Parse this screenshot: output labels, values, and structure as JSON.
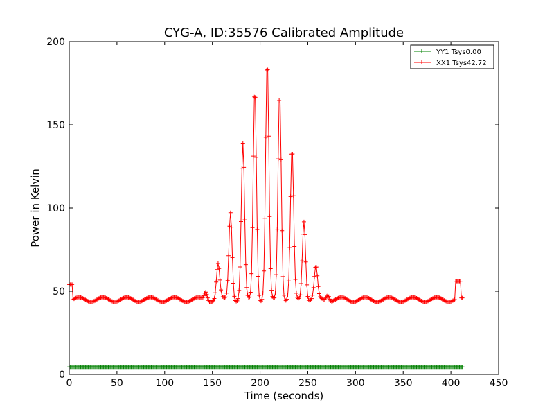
{
  "colors": {
    "yy1": "#008000",
    "xx1": "#ff0000",
    "axes": "#000000",
    "background": "#ffffff"
  },
  "chart_data": {
    "type": "line",
    "title": "CYG-A, ID:35576 Calibrated Amplitude",
    "xlabel": "Time (seconds)",
    "ylabel": "Power in Kelvin",
    "xlim": [
      0,
      450
    ],
    "ylim": [
      0,
      200
    ],
    "xticks": [
      0,
      50,
      100,
      150,
      200,
      250,
      300,
      350,
      400,
      450
    ],
    "yticks": [
      0,
      50,
      100,
      150,
      200
    ],
    "grid": false,
    "legend_position": "top-right",
    "series": [
      {
        "name": "YY1 Tsys0.00",
        "color": "#008000",
        "marker": "+",
        "x_start": 0,
        "x_end": 412,
        "x_step": 1,
        "constant_value": 4.5
      },
      {
        "name": "XX1 Tsys42.72",
        "color": "#ff0000",
        "marker": "+",
        "x_start": 0,
        "x_end": 412,
        "x_step": 1,
        "baseline": 45,
        "ripple_amplitude": 1.4,
        "ripple_period": 25,
        "start_level": 54,
        "start_end_time": 3,
        "end_level": 56,
        "end_spike_range": [
          405,
          410
        ],
        "end_drop_value": 46,
        "spikes": [
          {
            "center": 143,
            "peak": 50,
            "width": 1.5
          },
          {
            "center": 156,
            "peak": 66,
            "width": 1.7
          },
          {
            "center": 169,
            "peak": 98,
            "width": 1.7
          },
          {
            "center": 182,
            "peak": 138,
            "width": 1.7
          },
          {
            "center": 194.5,
            "peak": 173,
            "width": 1.7
          },
          {
            "center": 207.5,
            "peak": 188,
            "width": 1.7
          },
          {
            "center": 220.5,
            "peak": 171,
            "width": 1.7
          },
          {
            "center": 233.5,
            "peak": 135,
            "width": 1.7
          },
          {
            "center": 246,
            "peak": 93,
            "width": 1.7
          },
          {
            "center": 258.5,
            "peak": 64,
            "width": 1.7
          },
          {
            "center": 271,
            "peak": 49,
            "width": 1.5
          }
        ]
      }
    ]
  }
}
